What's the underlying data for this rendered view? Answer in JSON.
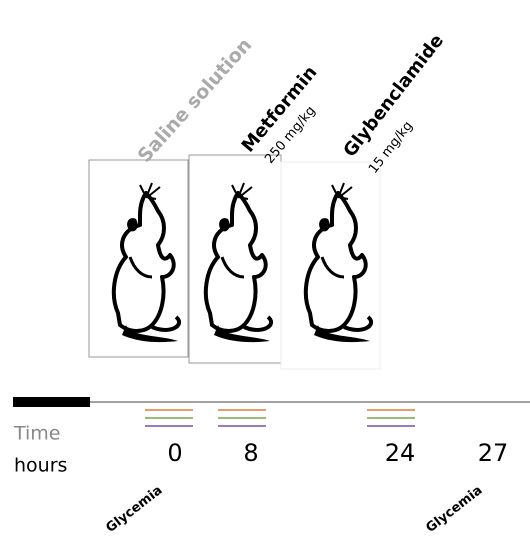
{
  "groups": [
    {
      "label": "Saline solution",
      "dose": null
    },
    {
      "label": "Metformin",
      "dose": "250 mg/kg"
    },
    {
      "label": "Glybenclamide",
      "dose": "15 mg/kg"
    }
  ],
  "timeline": {
    "time_label": "Time",
    "unit_label": "hours",
    "hours": [
      0,
      8,
      24,
      27
    ],
    "glycemia": [
      "Glycemia",
      "Glycemia"
    ]
  }
}
